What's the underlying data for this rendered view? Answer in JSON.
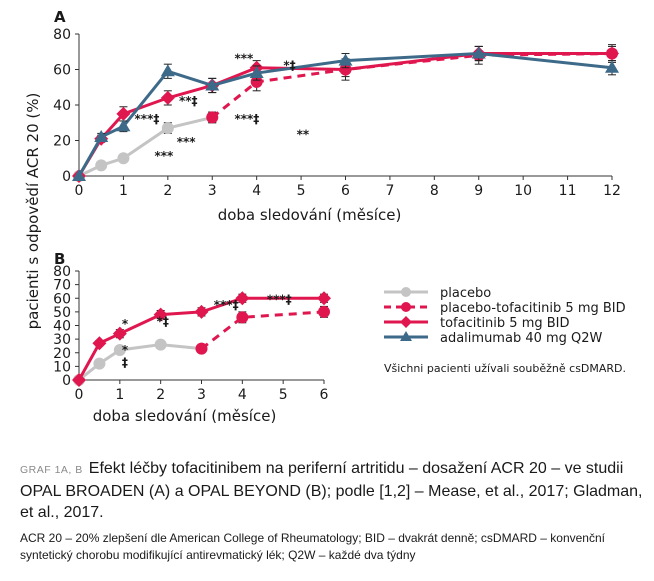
{
  "chart_data": [
    {
      "type": "line",
      "panel_label": "A",
      "xlabel": "doba sledování (měsíce)",
      "ylabel": "pacienti s odpovědí ACR 20 (%)",
      "xlim": [
        0,
        12
      ],
      "ylim": [
        0,
        80
      ],
      "xticks": [
        0,
        1,
        2,
        3,
        4,
        5,
        6,
        7,
        8,
        9,
        10,
        11,
        12
      ],
      "yticks": [
        0,
        20,
        40,
        60,
        80
      ],
      "series": [
        {
          "name": "placebo",
          "color": "#c4c4c4",
          "dash": false,
          "marker": "circle",
          "x": [
            0,
            0.5,
            1,
            2,
            3
          ],
          "values": [
            0,
            6,
            10,
            27,
            33
          ],
          "err": [
            0,
            1.5,
            2,
            3,
            3
          ]
        },
        {
          "name": "placebo-tofacitinib 5 mg BID",
          "color": "#e0174f",
          "dash": true,
          "marker": "circle",
          "x": [
            3,
            4,
            6,
            9,
            12
          ],
          "values": [
            33,
            53,
            60,
            68,
            69
          ],
          "err": [
            3,
            5,
            6,
            5,
            5
          ]
        },
        {
          "name": "tofacitinib 5 mg BID",
          "color": "#e0174f",
          "dash": false,
          "marker": "diamond",
          "x": [
            0,
            0.5,
            1,
            2,
            3,
            4,
            6,
            9,
            12
          ],
          "values": [
            0,
            21,
            35,
            44,
            51,
            61,
            60,
            69,
            69
          ],
          "err": [
            0,
            2,
            4,
            4,
            4,
            4,
            4,
            4,
            4
          ]
        },
        {
          "name": "adalimumab 40 mg Q2W",
          "color": "#3e6a8a",
          "dash": false,
          "marker": "triangle",
          "x": [
            0,
            0.5,
            1,
            2,
            3,
            4,
            6,
            9,
            12
          ],
          "values": [
            0,
            22,
            28,
            59,
            51,
            58,
            65,
            69,
            61
          ],
          "err": [
            0,
            2,
            3,
            4,
            4,
            4,
            4,
            4,
            4
          ]
        }
      ],
      "annotations": [
        {
          "text": "***‡",
          "x": 1.25,
          "y": 30
        },
        {
          "text": "***",
          "x": 1.7,
          "y": 9
        },
        {
          "text": "**‡",
          "x": 2.25,
          "y": 40
        },
        {
          "text": "***",
          "x": 2.2,
          "y": 17
        },
        {
          "text": "***",
          "x": 3.5,
          "y": 64
        },
        {
          "text": "***‡",
          "x": 3.5,
          "y": 30
        },
        {
          "text": "*‡",
          "x": 4.6,
          "y": 60
        },
        {
          "text": "**",
          "x": 4.9,
          "y": 21
        }
      ]
    },
    {
      "type": "line",
      "panel_label": "B",
      "xlabel": "doba sledování (měsíce)",
      "ylabel": "",
      "xlim": [
        0,
        6
      ],
      "ylim": [
        0,
        80
      ],
      "xticks": [
        0,
        1,
        2,
        3,
        4,
        5,
        6
      ],
      "yticks": [
        0,
        10,
        20,
        30,
        40,
        50,
        60,
        70,
        80
      ],
      "series": [
        {
          "name": "placebo",
          "color": "#c4c4c4",
          "dash": false,
          "marker": "circle",
          "x": [
            0,
            0.5,
            1,
            2,
            3
          ],
          "values": [
            0,
            12,
            22,
            26,
            23
          ],
          "err": [
            0,
            1.5,
            2,
            2,
            2
          ]
        },
        {
          "name": "placebo-tofacitinib 5 mg BID",
          "color": "#e0174f",
          "dash": true,
          "marker": "circle",
          "x": [
            3,
            4,
            6
          ],
          "values": [
            23,
            46,
            50
          ],
          "err": [
            2,
            4,
            4
          ]
        },
        {
          "name": "tofacitinib 5 mg BID",
          "color": "#e0174f",
          "dash": false,
          "marker": "diamond",
          "x": [
            0,
            0.5,
            1,
            2,
            3,
            4,
            6
          ],
          "values": [
            0,
            27,
            34,
            48,
            50,
            60,
            60
          ],
          "err": [
            0,
            2,
            3,
            3,
            3,
            3,
            3
          ]
        }
      ],
      "annotations": [
        {
          "text": "*",
          "x": 1.05,
          "y": 38
        },
        {
          "text": "*",
          "x": 1.05,
          "y": 19
        },
        {
          "text": "‡",
          "x": 1.05,
          "y": 10
        },
        {
          "text": "*‡",
          "x": 1.9,
          "y": 40
        },
        {
          "text": "***‡",
          "x": 3.3,
          "y": 52
        },
        {
          "text": "***‡",
          "x": 4.6,
          "y": 56
        }
      ]
    }
  ],
  "legend": {
    "items": [
      {
        "label": "placebo",
        "color": "#c4c4c4",
        "dash": false,
        "marker": "circle"
      },
      {
        "label": "placebo-tofacitinib 5 mg BID",
        "color": "#e0174f",
        "dash": true,
        "marker": "circle"
      },
      {
        "label": "tofacitinib 5 mg BID",
        "color": "#e0174f",
        "dash": false,
        "marker": "diamond"
      },
      {
        "label": "adalimumab 40 mg Q2W",
        "color": "#3e6a8a",
        "dash": false,
        "marker": "triangle"
      }
    ],
    "note": "Všichni pacienti užívali souběžně csDMARD."
  },
  "caption": {
    "prefix": "GRAF 1A, B",
    "title": "Efekt léčby tofacitinibem na periferní artritidu – dosažení ACR 20 – ve studii OPAL BROADEN (A) a OPAL BEYOND (B); podle [1,2] – Mease, et al., 2017; Gladman, et al., 2017.",
    "notes": "ACR 20 – 20% zlepšení dle American College of Rheumatology; BID – dvakrát denně; csDMARD – konvenční syntetický chorobu modifikující antirevmatický lék; Q2W – každé dva týdny"
  }
}
